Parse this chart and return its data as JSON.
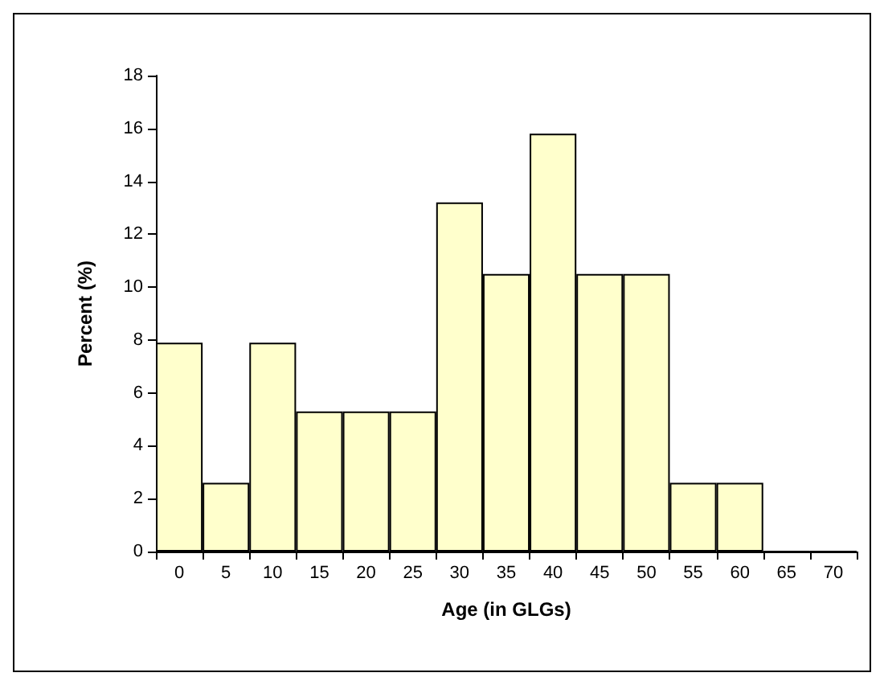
{
  "chart_data": {
    "type": "bar",
    "xlabel": "Age (in GLGs)",
    "ylabel": "Percent (%)",
    "categories": [
      "0",
      "5",
      "10",
      "15",
      "20",
      "25",
      "30",
      "35",
      "40",
      "45",
      "50",
      "55",
      "60",
      "65",
      "70"
    ],
    "values": [
      7.9,
      2.6,
      7.9,
      5.3,
      5.3,
      5.3,
      13.2,
      10.5,
      15.8,
      10.5,
      10.5,
      2.6,
      2.6,
      0,
      0
    ],
    "color": "#ffffcc",
    "ylim": [
      0,
      18
    ],
    "yticks": [
      0,
      2,
      4,
      6,
      8,
      10,
      12,
      14,
      16,
      18
    ],
    "grid": false
  }
}
